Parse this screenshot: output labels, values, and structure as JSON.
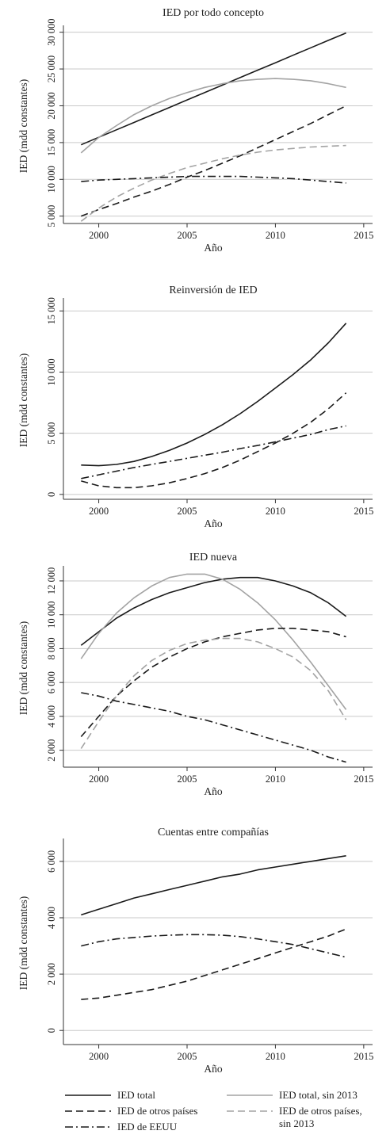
{
  "legend": [
    {
      "series": "ied_total",
      "label": "IED total",
      "color": "#1a1a1a",
      "dash": "solid"
    },
    {
      "series": "ied_total_sin2013",
      "label": "IED total, sin 2013",
      "color": "#a3a3a3",
      "dash": "solid"
    },
    {
      "series": "ied_otros",
      "label": "IED de otros países",
      "color": "#1a1a1a",
      "dash": "dash"
    },
    {
      "series": "ied_otros_sin2013",
      "label": "IED de otros países, sin 2013",
      "color": "#a3a3a3",
      "dash": "dash"
    },
    {
      "series": "ied_eeuu",
      "label": "IED de EEUU",
      "color": "#1a1a1a",
      "dash": "dashdot"
    }
  ],
  "chart_data": [
    {
      "type": "line",
      "title": "IED por todo concepto",
      "xlabel": "Año",
      "ylabel": "IED (mdd constantes)",
      "xlim": [
        1998,
        2015.5
      ],
      "ylim": [
        4000,
        30500
      ],
      "xticks": [
        2000,
        2005,
        2010,
        2015
      ],
      "yticks": [
        5000,
        10000,
        15000,
        20000,
        25000,
        30000
      ],
      "ytick_labels": [
        "5 000",
        "10 000",
        "15 000",
        "20 000",
        "25 000",
        "30 000"
      ],
      "grid": "horizontal",
      "x": [
        1999,
        2000,
        2001,
        2002,
        2003,
        2004,
        2005,
        2006,
        2007,
        2008,
        2009,
        2010,
        2011,
        2012,
        2013,
        2014
      ],
      "series": [
        {
          "id": "ied_total",
          "values": [
            14700,
            15720,
            16730,
            17740,
            18760,
            19770,
            20790,
            21800,
            22810,
            23830,
            24840,
            25850,
            26870,
            27880,
            28890,
            29900
          ]
        },
        {
          "id": "ied_total_sin2013",
          "values": [
            13600,
            15700,
            17300,
            18800,
            20000,
            21000,
            21800,
            22500,
            23000,
            23400,
            23600,
            23700,
            23600,
            23400,
            23000,
            22500
          ]
        },
        {
          "id": "ied_otros",
          "values": [
            5000,
            5900,
            6700,
            7600,
            8400,
            9300,
            10300,
            11200,
            12200,
            13200,
            14300,
            15400,
            16500,
            17600,
            18800,
            20000
          ]
        },
        {
          "id": "ied_otros_sin2013",
          "values": [
            4300,
            6100,
            7600,
            8800,
            9900,
            10800,
            11600,
            12200,
            12800,
            13300,
            13700,
            14000,
            14200,
            14400,
            14500,
            14600
          ]
        },
        {
          "id": "ied_eeuu",
          "values": [
            9700,
            9900,
            10000,
            10100,
            10200,
            10300,
            10400,
            10400,
            10400,
            10400,
            10300,
            10200,
            10100,
            9900,
            9700,
            9500
          ]
        }
      ]
    },
    {
      "type": "line",
      "title": "Reinversión de IED",
      "xlabel": "Año",
      "ylabel": "IED (mdd constantes)",
      "xlim": [
        1998,
        2015.5
      ],
      "ylim": [
        -400,
        15800
      ],
      "xticks": [
        2000,
        2005,
        2010,
        2015
      ],
      "yticks": [
        0,
        5000,
        10000,
        15000
      ],
      "ytick_labels": [
        "0",
        "5 000",
        "10 000",
        "15 000"
      ],
      "grid": "horizontal",
      "x": [
        1999,
        2000,
        2001,
        2002,
        2003,
        2004,
        2005,
        2006,
        2007,
        2008,
        2009,
        2010,
        2011,
        2012,
        2013,
        2014
      ],
      "series": [
        {
          "id": "ied_total",
          "values": [
            2400,
            2350,
            2450,
            2700,
            3100,
            3600,
            4200,
            4900,
            5700,
            6600,
            7600,
            8700,
            9800,
            11000,
            12400,
            14000
          ]
        },
        {
          "id": "ied_otros",
          "values": [
            1100,
            700,
            550,
            550,
            700,
            950,
            1300,
            1700,
            2200,
            2800,
            3500,
            4200,
            5000,
            5900,
            7000,
            8300
          ]
        },
        {
          "id": "ied_eeuu",
          "values": [
            1300,
            1600,
            1900,
            2200,
            2450,
            2700,
            2950,
            3200,
            3450,
            3750,
            4000,
            4300,
            4600,
            4900,
            5300,
            5600
          ]
        }
      ]
    },
    {
      "type": "line",
      "title": "IED nueva",
      "xlabel": "Año",
      "ylabel": "IED (mdd constantes)",
      "xlim": [
        1998,
        2015.5
      ],
      "ylim": [
        1000,
        12700
      ],
      "xticks": [
        2000,
        2005,
        2010,
        2015
      ],
      "yticks": [
        2000,
        4000,
        6000,
        8000,
        10000,
        12000
      ],
      "ytick_labels": [
        "2 000",
        "4 000",
        "6 000",
        "8 000",
        "10 000",
        "12 000"
      ],
      "grid": "horizontal",
      "x": [
        1999,
        2000,
        2001,
        2002,
        2003,
        2004,
        2005,
        2006,
        2007,
        2008,
        2009,
        2010,
        2011,
        2012,
        2013,
        2014
      ],
      "series": [
        {
          "id": "ied_total",
          "values": [
            8200,
            9000,
            9800,
            10400,
            10900,
            11300,
            11600,
            11900,
            12100,
            12200,
            12200,
            12000,
            11700,
            11300,
            10700,
            9900
          ]
        },
        {
          "id": "ied_total_sin2013",
          "values": [
            7400,
            8900,
            10100,
            11000,
            11700,
            12200,
            12400,
            12400,
            12100,
            11500,
            10700,
            9700,
            8500,
            7200,
            5800,
            4400
          ]
        },
        {
          "id": "ied_otros",
          "values": [
            2800,
            4000,
            5200,
            6100,
            6900,
            7500,
            8000,
            8400,
            8700,
            8900,
            9100,
            9200,
            9200,
            9100,
            9000,
            8700
          ]
        },
        {
          "id": "ied_otros_sin2013",
          "values": [
            2100,
            3700,
            5200,
            6400,
            7300,
            7900,
            8300,
            8500,
            8600,
            8600,
            8400,
            8000,
            7500,
            6700,
            5500,
            3800
          ]
        },
        {
          "id": "ied_eeuu",
          "values": [
            5400,
            5200,
            4900,
            4700,
            4500,
            4300,
            4000,
            3800,
            3500,
            3200,
            2900,
            2600,
            2300,
            2000,
            1600,
            1300
          ]
        }
      ]
    },
    {
      "type": "line",
      "title": "Cuentas entre compañías",
      "xlabel": "Año",
      "ylabel": "IED (mdd constantes)",
      "xlim": [
        1998,
        2015.5
      ],
      "ylim": [
        -500,
        6700
      ],
      "xticks": [
        2000,
        2005,
        2010,
        2015
      ],
      "yticks": [
        0,
        2000,
        4000,
        6000
      ],
      "ytick_labels": [
        "0",
        "2 000",
        "4 000",
        "6 000"
      ],
      "grid": "horizontal",
      "x": [
        1999,
        2000,
        2001,
        2002,
        2003,
        2004,
        2005,
        2006,
        2007,
        2008,
        2009,
        2010,
        2011,
        2012,
        2013,
        2014
      ],
      "series": [
        {
          "id": "ied_total",
          "values": [
            4100,
            4300,
            4500,
            4700,
            4850,
            5000,
            5150,
            5300,
            5450,
            5550,
            5700,
            5800,
            5900,
            6000,
            6100,
            6200
          ]
        },
        {
          "id": "ied_otros",
          "values": [
            1100,
            1150,
            1250,
            1350,
            1450,
            1600,
            1750,
            1950,
            2150,
            2350,
            2550,
            2750,
            2950,
            3150,
            3350,
            3600
          ]
        },
        {
          "id": "ied_eeuu",
          "values": [
            3000,
            3150,
            3250,
            3300,
            3350,
            3380,
            3400,
            3400,
            3380,
            3330,
            3250,
            3150,
            3050,
            2900,
            2750,
            2600
          ]
        }
      ]
    }
  ]
}
